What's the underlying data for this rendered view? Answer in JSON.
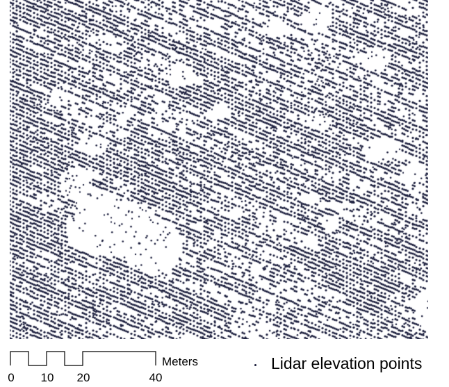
{
  "map": {
    "point_color": "#1a1d3c",
    "background_color": "#ffffff"
  },
  "scale_bar": {
    "ticks": [
      "0",
      "10",
      "20",
      "40"
    ],
    "unit": "Meters"
  },
  "legend": {
    "label": "Lidar elevation points",
    "symbol": "dot"
  }
}
